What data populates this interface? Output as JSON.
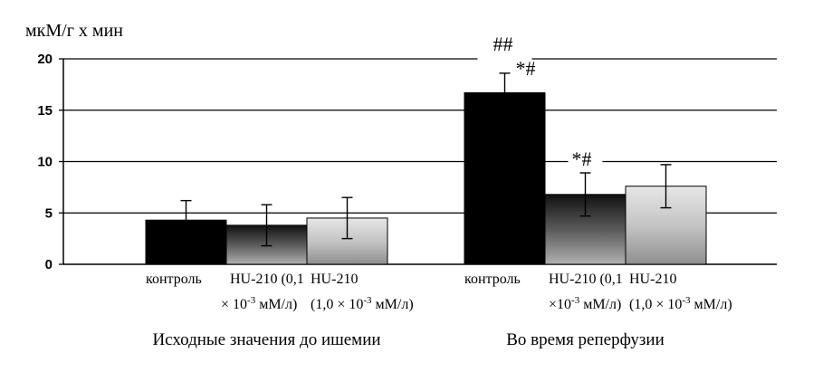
{
  "chart_data": {
    "type": "bar",
    "ylabel": "мкМ/г x мин",
    "ylim": [
      0,
      20
    ],
    "yticks": [
      0,
      5,
      10,
      15,
      20
    ],
    "grid": true,
    "groups": [
      {
        "label": "Исходные значения до ишемии",
        "bars": [
          {
            "label_lines": [
              "контроль"
            ],
            "value": 4.3,
            "error": 1.9,
            "annotation": ""
          },
          {
            "label_lines": [
              "HU-210 (0,1",
              "× 10",
              "-3",
              " мМ/л)"
            ],
            "value": 3.8,
            "error": 2.0,
            "annotation": ""
          },
          {
            "label_lines": [
              "HU-210",
              "(1,0 × 10",
              "-3",
              " мМ/л)"
            ],
            "value": 4.5,
            "error": 2.0,
            "annotation": ""
          }
        ]
      },
      {
        "label": "Во время реперфузии",
        "bars": [
          {
            "label_lines": [
              "контроль"
            ],
            "value": 16.7,
            "error": 1.9,
            "annotation": "*#"
          },
          {
            "label_lines": [
              "HU-210 (0,1",
              "×10",
              "-3",
              " мМ/л)"
            ],
            "value": 6.8,
            "error": 2.1,
            "annotation": "*#"
          },
          {
            "label_lines": [
              "HU-210",
              "(1,0 × 10",
              "-3",
              " мМ/л)"
            ],
            "value": 7.6,
            "error": 2.1,
            "annotation": ""
          }
        ]
      }
    ],
    "bracket_annotation": "##",
    "series_colors": [
      "#000000",
      "#3a3a3a",
      "#b8b8b8"
    ]
  }
}
